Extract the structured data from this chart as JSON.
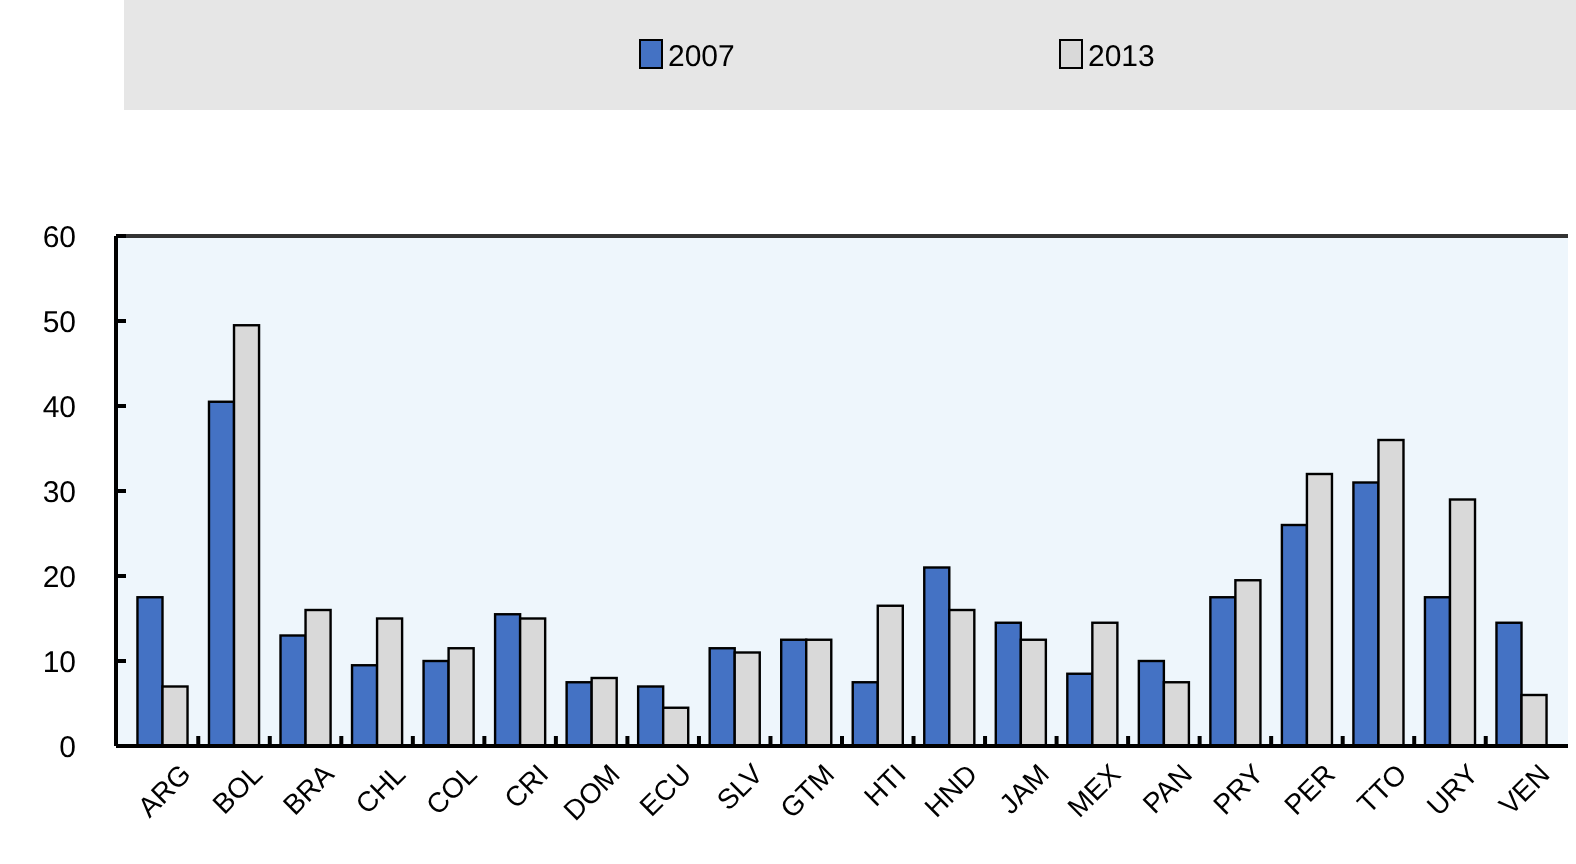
{
  "chart_data": {
    "type": "bar",
    "categories": [
      "ARG",
      "BOL",
      "BRA",
      "CHL",
      "COL",
      "CRI",
      "DOM",
      "ECU",
      "SLV",
      "GTM",
      "HTI",
      "HND",
      "JAM",
      "MEX",
      "PAN",
      "PRY",
      "PER",
      "TTO",
      "URY",
      "VEN"
    ],
    "series": [
      {
        "name": "2007",
        "color": "#4472c4",
        "values": [
          17.5,
          40.5,
          13,
          9.5,
          10,
          15.5,
          7.5,
          7,
          11.5,
          12.5,
          7.5,
          21,
          14.5,
          8.5,
          10,
          17.5,
          26,
          31,
          17.5,
          14.5
        ]
      },
      {
        "name": "2013",
        "color": "#d9d9d9",
        "values": [
          7,
          49.5,
          16,
          15,
          11.5,
          15,
          8,
          4.5,
          11,
          12.5,
          16.5,
          16,
          12.5,
          14.5,
          7.5,
          19.5,
          32,
          36,
          29,
          6
        ]
      }
    ],
    "ylim": [
      0,
      60
    ],
    "yticks": [
      0,
      10,
      20,
      30,
      40,
      50,
      60
    ],
    "grid": false,
    "legend": "top"
  }
}
